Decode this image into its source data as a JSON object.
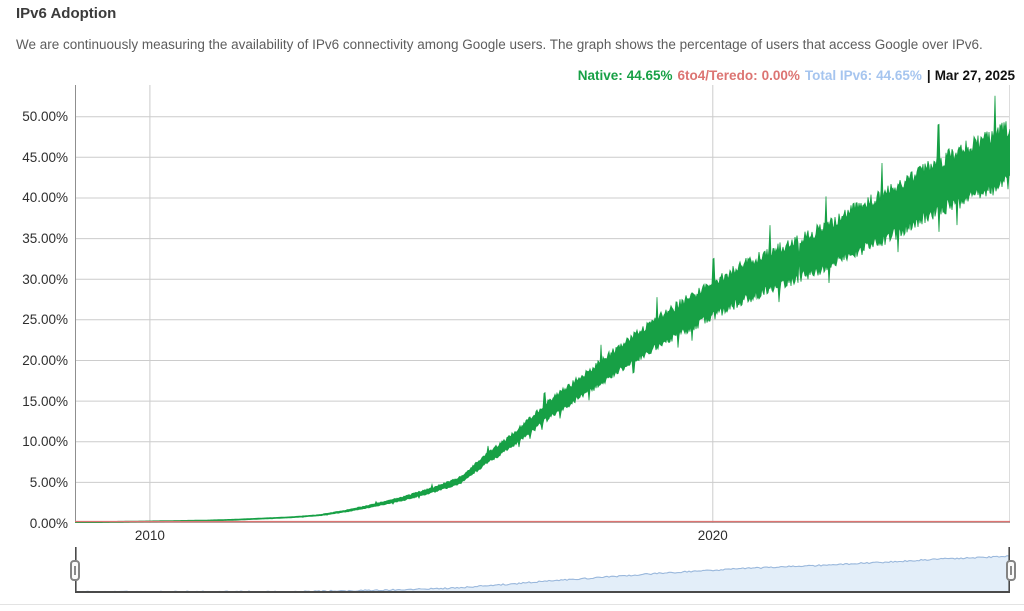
{
  "page": {
    "title": "IPv6 Adoption",
    "description": "We are continuously measuring the availability of IPv6 connectivity among Google users. The graph shows the percentage of users that access Google over IPv6."
  },
  "legend": {
    "native_label": "Native:",
    "native_value": "44.65%",
    "relay_label": "6to4/Teredo:",
    "relay_value": "0.00%",
    "total_label": "Total IPv6:",
    "total_value": "44.65%",
    "separator": "|",
    "date": "Mar 27, 2025"
  },
  "colors": {
    "native": "#17a045",
    "relay": "#dc7472",
    "total": "#a6c5ef",
    "mini_line": "#9ab8dc",
    "mini_fill": "#e3eef9",
    "grid": "#cccccc",
    "axis": "#8f8f8f",
    "plot_right_border": "#dddddd",
    "baseline": "#9a9a9a",
    "scrubber_frame": "#4a4a4a"
  },
  "chart_data": {
    "type": "area",
    "title": "IPv6 Adoption",
    "xlabel": "",
    "ylabel": "",
    "grid": true,
    "legend_position": "top-right",
    "xlim": [
      2008.67,
      2025.28
    ],
    "ylim": [
      0,
      53.9
    ],
    "x_ticks": [
      {
        "label": "2010",
        "value": 2010
      },
      {
        "label": "2020",
        "value": 2020
      }
    ],
    "y_ticks": [
      {
        "label": "0.00%",
        "value": 0
      },
      {
        "label": "5.00%",
        "value": 5
      },
      {
        "label": "10.00%",
        "value": 10
      },
      {
        "label": "15.00%",
        "value": 15
      },
      {
        "label": "20.00%",
        "value": 20
      },
      {
        "label": "25.00%",
        "value": 25
      },
      {
        "label": "30.00%",
        "value": 30
      },
      {
        "label": "35.00%",
        "value": 35
      },
      {
        "label": "40.00%",
        "value": 40
      },
      {
        "label": "45.00%",
        "value": 45
      },
      {
        "label": "50.00%",
        "value": 50
      }
    ],
    "oscillation": {
      "relative_amplitude": 0.095
    },
    "series": [
      {
        "name": "Native",
        "color": "#17a045",
        "current": "44.65%",
        "points": [
          [
            2008.67,
            0.03
          ],
          [
            2009,
            0.1
          ],
          [
            2009.5,
            0.15
          ],
          [
            2010,
            0.2
          ],
          [
            2010.5,
            0.25
          ],
          [
            2011,
            0.3
          ],
          [
            2011.5,
            0.4
          ],
          [
            2012,
            0.55
          ],
          [
            2012.5,
            0.7
          ],
          [
            2013,
            0.95
          ],
          [
            2013.5,
            1.5
          ],
          [
            2014,
            2.2
          ],
          [
            2014.5,
            3.0
          ],
          [
            2015,
            4.0
          ],
          [
            2015.5,
            5.2
          ],
          [
            2016,
            8.0
          ],
          [
            2016.5,
            10.5
          ],
          [
            2017,
            13.5
          ],
          [
            2017.5,
            16.0
          ],
          [
            2018,
            18.5
          ],
          [
            2018.5,
            21.0
          ],
          [
            2019,
            23.5
          ],
          [
            2019.5,
            25.5
          ],
          [
            2020,
            27.5
          ],
          [
            2020.5,
            29.5
          ],
          [
            2021,
            31.0
          ],
          [
            2021.5,
            32.5
          ],
          [
            2022,
            34.0
          ],
          [
            2022.5,
            36.0
          ],
          [
            2023,
            37.5
          ],
          [
            2023.5,
            39.5
          ],
          [
            2024,
            41.5
          ],
          [
            2024.5,
            43.0
          ],
          [
            2025,
            44.5
          ],
          [
            2025.28,
            45.5
          ]
        ]
      },
      {
        "name": "6to4/Teredo",
        "color": "#dc7472",
        "current": "0.00%",
        "points": [
          [
            2008.67,
            0.0
          ],
          [
            2025.28,
            0.0
          ]
        ]
      },
      {
        "name": "Total IPv6",
        "color": "#a6c5ef",
        "current": "44.65%",
        "points": [
          [
            2008.67,
            0.03
          ],
          [
            2009,
            0.1
          ],
          [
            2009.5,
            0.15
          ],
          [
            2010,
            0.2
          ],
          [
            2010.5,
            0.25
          ],
          [
            2011,
            0.3
          ],
          [
            2011.5,
            0.4
          ],
          [
            2012,
            0.55
          ],
          [
            2012.5,
            0.7
          ],
          [
            2013,
            0.95
          ],
          [
            2013.5,
            1.5
          ],
          [
            2014,
            2.2
          ],
          [
            2014.5,
            3.0
          ],
          [
            2015,
            4.0
          ],
          [
            2015.5,
            5.2
          ],
          [
            2016,
            8.0
          ],
          [
            2016.5,
            10.5
          ],
          [
            2017,
            13.5
          ],
          [
            2017.5,
            16.0
          ],
          [
            2018,
            18.5
          ],
          [
            2018.5,
            21.0
          ],
          [
            2019,
            23.5
          ],
          [
            2019.5,
            25.5
          ],
          [
            2020,
            27.5
          ],
          [
            2020.5,
            29.5
          ],
          [
            2021,
            31.0
          ],
          [
            2021.5,
            32.5
          ],
          [
            2022,
            34.0
          ],
          [
            2022.5,
            36.0
          ],
          [
            2023,
            37.5
          ],
          [
            2023.5,
            39.5
          ],
          [
            2024,
            41.5
          ],
          [
            2024.5,
            43.0
          ],
          [
            2025,
            44.5
          ],
          [
            2025.28,
            45.5
          ]
        ]
      }
    ]
  }
}
